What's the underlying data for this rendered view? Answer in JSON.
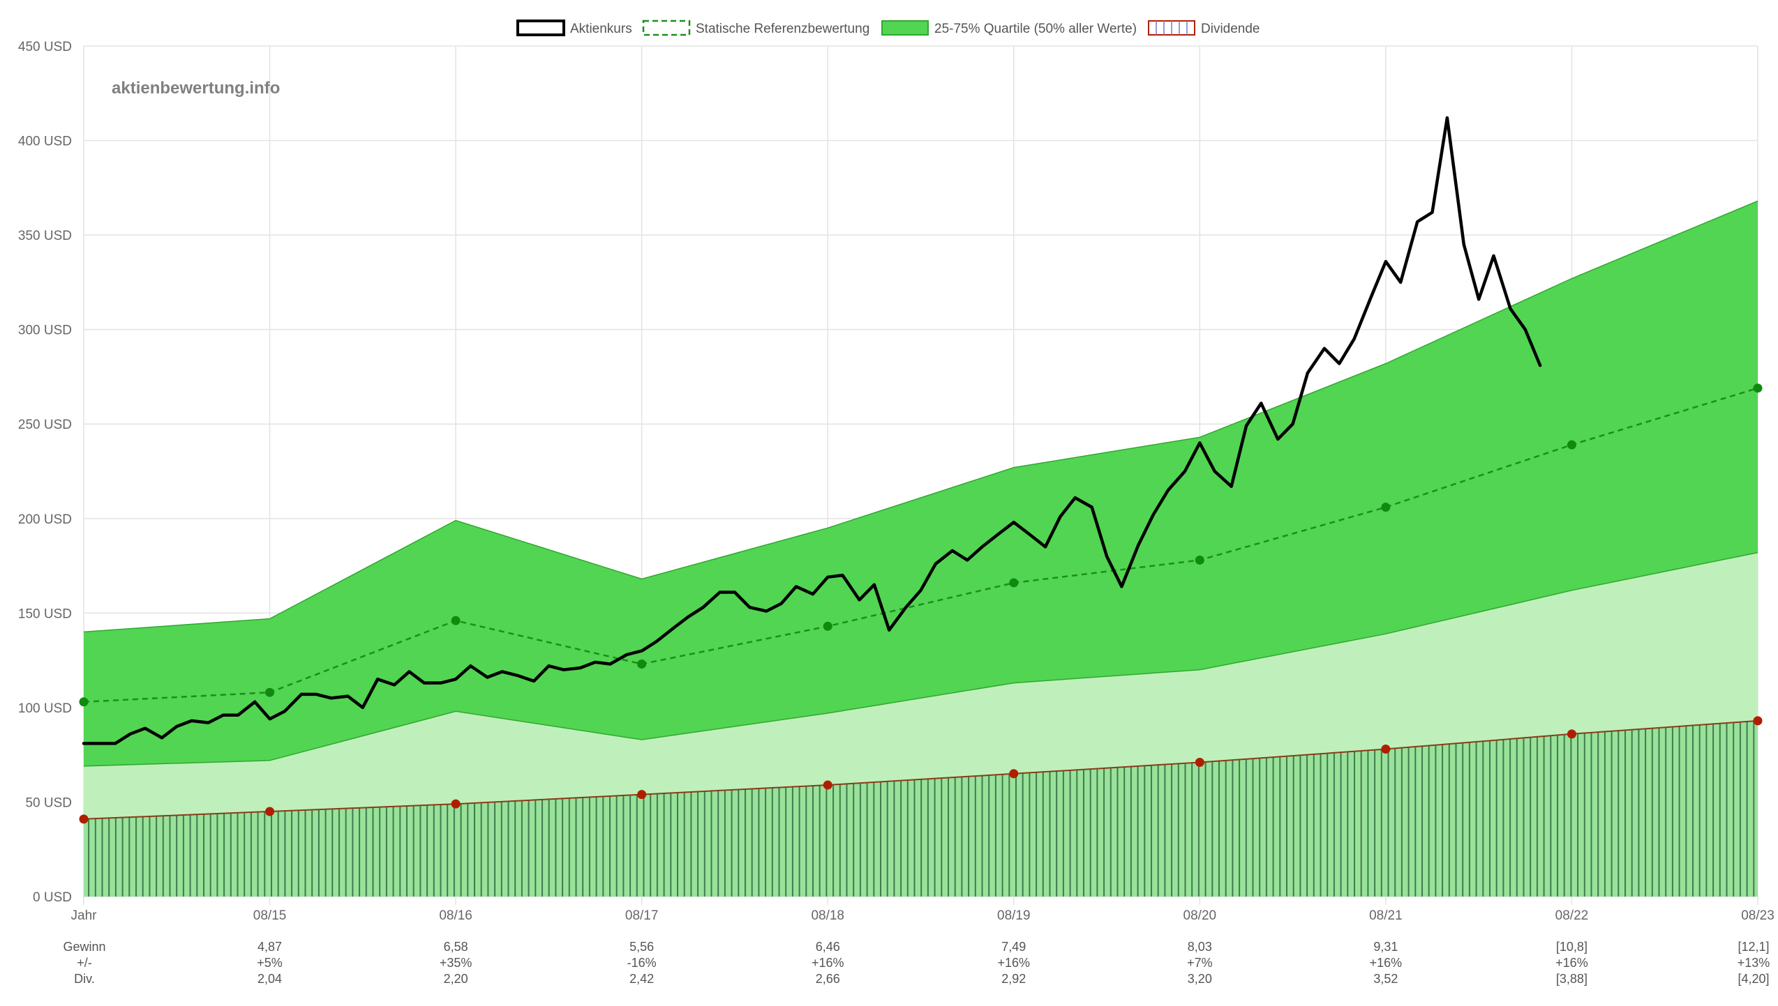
{
  "brand": "aktienbewertung.info",
  "legend": [
    {
      "label": "Aktienkurs",
      "style": "price"
    },
    {
      "label": "Statische Referenzbewertung",
      "style": "reference"
    },
    {
      "label": "25-75% Quartile (50% aller Werte)",
      "style": "band"
    },
    {
      "label": "Dividende",
      "style": "dividend"
    }
  ],
  "colors": {
    "price": "#000000",
    "reference": "#1a8f1a",
    "band_upper": "#52d552",
    "band_lower": "#bff0bb",
    "band_edge": "#2fa82f",
    "dividend_fill": "#99e29a",
    "dividend_hatch": "#3f7a4d",
    "dividend_line": "#8b3a1a",
    "dividend_point": "#b01e00",
    "reference_point": "#0f8a0f",
    "grid": "#e3e3e3"
  },
  "chart_data": {
    "type": "line",
    "y_ticks": [
      "0 USD",
      "50 USD",
      "100 USD",
      "150 USD",
      "200 USD",
      "250 USD",
      "300 USD",
      "350 USD",
      "400 USD",
      "450 USD"
    ],
    "ylim": [
      0,
      450
    ],
    "xlim": [
      2014,
      2023
    ],
    "x_ticks": [
      {
        "x": 2014,
        "label": "Jahr"
      },
      {
        "x": 2015,
        "label": "08/15"
      },
      {
        "x": 2016,
        "label": "08/16"
      },
      {
        "x": 2017,
        "label": "08/17"
      },
      {
        "x": 2018,
        "label": "08/18"
      },
      {
        "x": 2019,
        "label": "08/19"
      },
      {
        "x": 2020,
        "label": "08/20"
      },
      {
        "x": 2021,
        "label": "08/21"
      },
      {
        "x": 2022,
        "label": "08/22"
      },
      {
        "x": 2023,
        "label": "08/23"
      }
    ],
    "quartile_upper": [
      [
        2014,
        140
      ],
      [
        2015,
        147
      ],
      [
        2016,
        199
      ],
      [
        2017,
        168
      ],
      [
        2018,
        195
      ],
      [
        2019,
        227
      ],
      [
        2020,
        243
      ],
      [
        2021,
        282
      ],
      [
        2022,
        327
      ],
      [
        2023,
        368
      ]
    ],
    "quartile_lower": [
      [
        2014,
        69
      ],
      [
        2015,
        72
      ],
      [
        2016,
        98
      ],
      [
        2017,
        83
      ],
      [
        2018,
        97
      ],
      [
        2019,
        113
      ],
      [
        2020,
        120
      ],
      [
        2021,
        139
      ],
      [
        2022,
        162
      ],
      [
        2023,
        182
      ]
    ],
    "reference": [
      [
        2014,
        103
      ],
      [
        2015,
        108
      ],
      [
        2016,
        146
      ],
      [
        2017,
        123
      ],
      [
        2018,
        143
      ],
      [
        2019,
        166
      ],
      [
        2020,
        178
      ],
      [
        2021,
        206
      ],
      [
        2022,
        239
      ],
      [
        2023,
        269
      ]
    ],
    "dividend": [
      [
        2014,
        41
      ],
      [
        2015,
        45
      ],
      [
        2016,
        49
      ],
      [
        2017,
        54
      ],
      [
        2018,
        59
      ],
      [
        2019,
        65
      ],
      [
        2020,
        71
      ],
      [
        2021,
        78
      ],
      [
        2022,
        86
      ],
      [
        2023,
        93
      ]
    ],
    "price": [
      [
        2014.0,
        81
      ],
      [
        2014.08,
        81
      ],
      [
        2014.17,
        81
      ],
      [
        2014.25,
        86
      ],
      [
        2014.33,
        89
      ],
      [
        2014.42,
        84
      ],
      [
        2014.5,
        90
      ],
      [
        2014.58,
        93
      ],
      [
        2014.67,
        92
      ],
      [
        2014.75,
        96
      ],
      [
        2014.83,
        96
      ],
      [
        2014.92,
        103
      ],
      [
        2015.0,
        94
      ],
      [
        2015.08,
        98
      ],
      [
        2015.17,
        107
      ],
      [
        2015.25,
        107
      ],
      [
        2015.33,
        105
      ],
      [
        2015.42,
        106
      ],
      [
        2015.5,
        100
      ],
      [
        2015.58,
        115
      ],
      [
        2015.67,
        112
      ],
      [
        2015.75,
        119
      ],
      [
        2015.83,
        113
      ],
      [
        2015.92,
        113
      ],
      [
        2016.0,
        115
      ],
      [
        2016.08,
        122
      ],
      [
        2016.17,
        116
      ],
      [
        2016.25,
        119
      ],
      [
        2016.33,
        117
      ],
      [
        2016.42,
        114
      ],
      [
        2016.5,
        122
      ],
      [
        2016.58,
        120
      ],
      [
        2016.67,
        121
      ],
      [
        2016.75,
        124
      ],
      [
        2016.83,
        123
      ],
      [
        2016.92,
        128
      ],
      [
        2017.0,
        130
      ],
      [
        2017.08,
        135
      ],
      [
        2017.17,
        142
      ],
      [
        2017.25,
        148
      ],
      [
        2017.33,
        153
      ],
      [
        2017.42,
        161
      ],
      [
        2017.5,
        161
      ],
      [
        2017.58,
        153
      ],
      [
        2017.67,
        151
      ],
      [
        2017.75,
        155
      ],
      [
        2017.83,
        164
      ],
      [
        2017.92,
        160
      ],
      [
        2018.0,
        169
      ],
      [
        2018.08,
        170
      ],
      [
        2018.17,
        157
      ],
      [
        2018.25,
        165
      ],
      [
        2018.33,
        141
      ],
      [
        2018.42,
        153
      ],
      [
        2018.5,
        162
      ],
      [
        2018.58,
        176
      ],
      [
        2018.67,
        183
      ],
      [
        2018.75,
        178
      ],
      [
        2018.83,
        185
      ],
      [
        2018.92,
        192
      ],
      [
        2019.0,
        198
      ],
      [
        2019.08,
        192
      ],
      [
        2019.17,
        185
      ],
      [
        2019.25,
        201
      ],
      [
        2019.33,
        211
      ],
      [
        2019.42,
        206
      ],
      [
        2019.5,
        180
      ],
      [
        2019.58,
        164
      ],
      [
        2019.67,
        186
      ],
      [
        2019.75,
        202
      ],
      [
        2019.83,
        215
      ],
      [
        2019.92,
        225
      ],
      [
        2020.0,
        240
      ],
      [
        2020.08,
        225
      ],
      [
        2020.17,
        217
      ],
      [
        2020.25,
        249
      ],
      [
        2020.33,
        261
      ],
      [
        2020.42,
        242
      ],
      [
        2020.5,
        250
      ],
      [
        2020.58,
        277
      ],
      [
        2020.67,
        290
      ],
      [
        2020.75,
        282
      ],
      [
        2020.83,
        295
      ],
      [
        2020.92,
        317
      ],
      [
        2021.0,
        336
      ],
      [
        2021.08,
        325
      ],
      [
        2021.17,
        357
      ],
      [
        2021.25,
        362
      ],
      [
        2021.33,
        412
      ],
      [
        2021.42,
        345
      ],
      [
        2021.5,
        316
      ],
      [
        2021.58,
        339
      ],
      [
        2021.67,
        311
      ],
      [
        2021.75,
        300
      ],
      [
        2021.83,
        281
      ]
    ]
  },
  "table": {
    "rows": [
      {
        "label": "Gewinn",
        "values": [
          "4,87",
          "6,58",
          "5,56",
          "6,46",
          "7,49",
          "8,03",
          "9,31",
          "[10,8]",
          "[12,1]"
        ]
      },
      {
        "label": "+/-",
        "values": [
          "+5%",
          "+35%",
          "-16%",
          "+16%",
          "+16%",
          "+7%",
          "+16%",
          "+16%",
          "+13%"
        ]
      },
      {
        "label": "Div.",
        "values": [
          "2,04",
          "2,20",
          "2,42",
          "2,66",
          "2,92",
          "3,20",
          "3,52",
          "[3,88]",
          "[4,20]"
        ]
      }
    ]
  }
}
